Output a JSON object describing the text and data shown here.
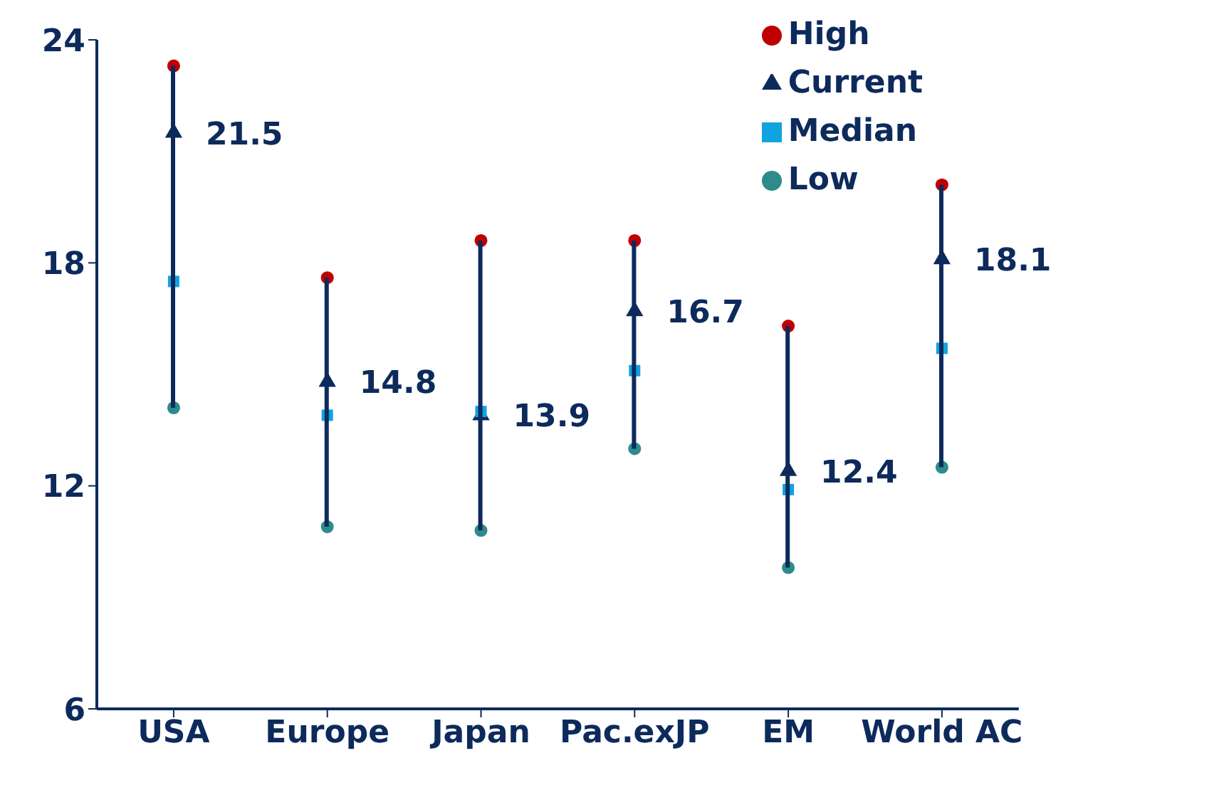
{
  "chart_data": {
    "type": "scatter",
    "categories": [
      "USA",
      "Europe",
      "Japan",
      "Pac.exJP",
      "EM",
      "World AC"
    ],
    "ylim": [
      6,
      24
    ],
    "yticks": [
      6,
      12,
      18,
      24
    ],
    "legend": "top right",
    "series": [
      {
        "type": "bar",
        "color": "#0d2a5c",
        "base": [
          14.1,
          10.9,
          10.8,
          13.0,
          9.8,
          12.5
        ],
        "values": [
          9.2,
          6.7,
          7.8,
          5.6,
          6.5,
          7.6
        ]
      },
      {
        "name": "High",
        "color": "#c00000",
        "marker": "circle",
        "values": [
          23.3,
          17.6,
          18.6,
          18.6,
          16.3,
          20.1
        ]
      },
      {
        "name": "Current",
        "color": "#0d2a5c",
        "marker": "triangle",
        "values": [
          21.5,
          14.8,
          13.9,
          16.7,
          12.4,
          18.1
        ],
        "value_labels": [
          "21.5",
          "14.8",
          "13.9",
          "16.7",
          "12.4",
          "18.1"
        ]
      },
      {
        "name": "Median",
        "color": "#11a3e0",
        "marker": "square",
        "values": [
          17.5,
          13.9,
          14.0,
          15.1,
          11.9,
          15.7
        ]
      },
      {
        "name": "Low",
        "color": "#2e8b8b",
        "marker": "circle",
        "values": [
          14.1,
          10.9,
          10.8,
          13.0,
          9.8,
          12.5
        ]
      }
    ]
  }
}
